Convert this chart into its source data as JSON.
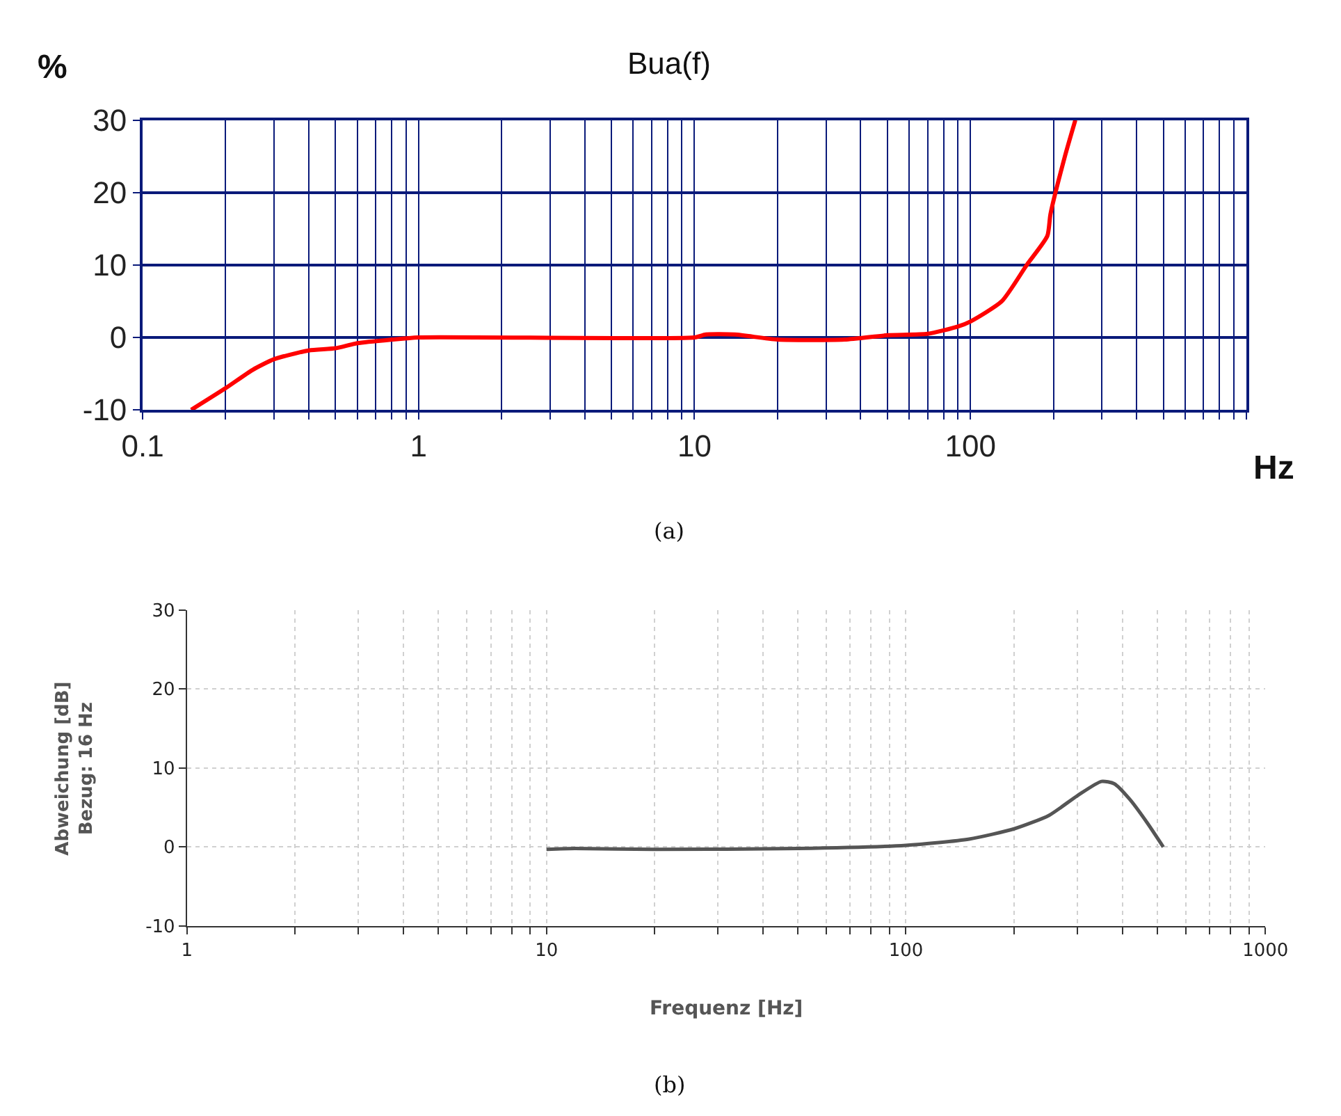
{
  "chart_data": [
    {
      "type": "line",
      "title": "Bua(f)",
      "ylabel": "%",
      "xlabel": "Hz",
      "log": "x",
      "grid": true,
      "marker": "none",
      "line_style": "solid",
      "xlim": [
        0.1,
        1000
      ],
      "xticks": [
        0.1,
        {
          "value": 0.2,
          "label": null
        },
        {
          "value": 0.3,
          "label": null
        },
        {
          "value": 0.4,
          "label": null
        },
        {
          "value": 0.5,
          "label": null
        },
        {
          "value": 0.6,
          "label": null
        },
        {
          "value": 0.7,
          "label": null
        },
        {
          "value": 0.8,
          "label": null
        },
        {
          "value": 0.9,
          "label": null
        },
        1,
        {
          "value": 2,
          "label": null
        },
        {
          "value": 3,
          "label": null
        },
        {
          "value": 4,
          "label": null
        },
        {
          "value": 5,
          "label": null
        },
        {
          "value": 6,
          "label": null
        },
        {
          "value": 7,
          "label": null
        },
        {
          "value": 8,
          "label": null
        },
        {
          "value": 9,
          "label": null
        },
        10,
        {
          "value": 20,
          "label": null
        },
        {
          "value": 30,
          "label": null
        },
        {
          "value": 40,
          "label": null
        },
        {
          "value": 50,
          "label": null
        },
        {
          "value": 60,
          "label": null
        },
        {
          "value": 70,
          "label": null
        },
        {
          "value": 80,
          "label": null
        },
        {
          "value": 90,
          "label": null
        },
        100,
        {
          "value": 200,
          "label": null
        },
        {
          "value": 300,
          "label": null
        },
        {
          "value": 400,
          "label": null
        },
        {
          "value": 500,
          "label": null
        },
        {
          "value": 600,
          "label": null
        },
        {
          "value": 700,
          "label": null
        },
        {
          "value": 800,
          "label": null
        },
        {
          "value": 900,
          "label": null
        },
        {
          "value": 1000,
          "label": null
        }
      ],
      "ylim": [
        -10,
        30
      ],
      "yticks": [
        -10,
        0,
        10,
        20,
        30
      ],
      "x": [
        0.15,
        0.2,
        0.25,
        0.3,
        0.4,
        0.5,
        0.6,
        0.8,
        1,
        10,
        11,
        14,
        20,
        35,
        50,
        70,
        90,
        100,
        130,
        160,
        190,
        195,
        220,
        240
      ],
      "series": [
        {
          "color": "#ff0000",
          "values": [
            -10,
            -7,
            -4.5,
            -3,
            -1.8,
            -1.5,
            -0.8,
            -0.3,
            0,
            0,
            0.4,
            0.4,
            -0.3,
            -0.3,
            0.3,
            0.5,
            1.5,
            2.2,
            5,
            10,
            14,
            17,
            25,
            30
          ]
        }
      ],
      "annotations": [
        "(a)"
      ]
    },
    {
      "type": "line",
      "ylabel": "Abweichung [dB]\nBezug: 16 Hz",
      "xlabel": "Frequenz [Hz]",
      "log": "x",
      "grid": true,
      "marker": "none",
      "line_style": "solid",
      "xlim": [
        1,
        1000
      ],
      "xticks": [
        1,
        {
          "value": 2,
          "label": null
        },
        {
          "value": 3,
          "label": null
        },
        {
          "value": 4,
          "label": null
        },
        {
          "value": 5,
          "label": null
        },
        {
          "value": 6,
          "label": null
        },
        {
          "value": 7,
          "label": null
        },
        {
          "value": 8,
          "label": null
        },
        {
          "value": 9,
          "label": null
        },
        10,
        {
          "value": 20,
          "label": null
        },
        {
          "value": 30,
          "label": null
        },
        {
          "value": 40,
          "label": null
        },
        {
          "value": 50,
          "label": null
        },
        {
          "value": 60,
          "label": null
        },
        {
          "value": 70,
          "label": null
        },
        {
          "value": 80,
          "label": null
        },
        {
          "value": 90,
          "label": null
        },
        100,
        {
          "value": 200,
          "label": null
        },
        {
          "value": 300,
          "label": null
        },
        {
          "value": 400,
          "label": null
        },
        {
          "value": 500,
          "label": null
        },
        {
          "value": 600,
          "label": null
        },
        {
          "value": 700,
          "label": null
        },
        {
          "value": 800,
          "label": null
        },
        {
          "value": 900,
          "label": null
        },
        1000
      ],
      "ylim": [
        -10,
        30
      ],
      "yticks": [
        -10,
        0,
        10,
        20,
        30
      ],
      "x": [
        10,
        12,
        20,
        50,
        100,
        150,
        200,
        250,
        300,
        350,
        380,
        420,
        470,
        520
      ],
      "series": [
        {
          "color": "#555555",
          "values": [
            -0.3,
            -0.2,
            -0.3,
            -0.2,
            0.2,
            1,
            2.3,
            4,
            6.5,
            8.3,
            8,
            6,
            3,
            0
          ]
        }
      ],
      "annotations": [
        "(b)"
      ]
    }
  ]
}
